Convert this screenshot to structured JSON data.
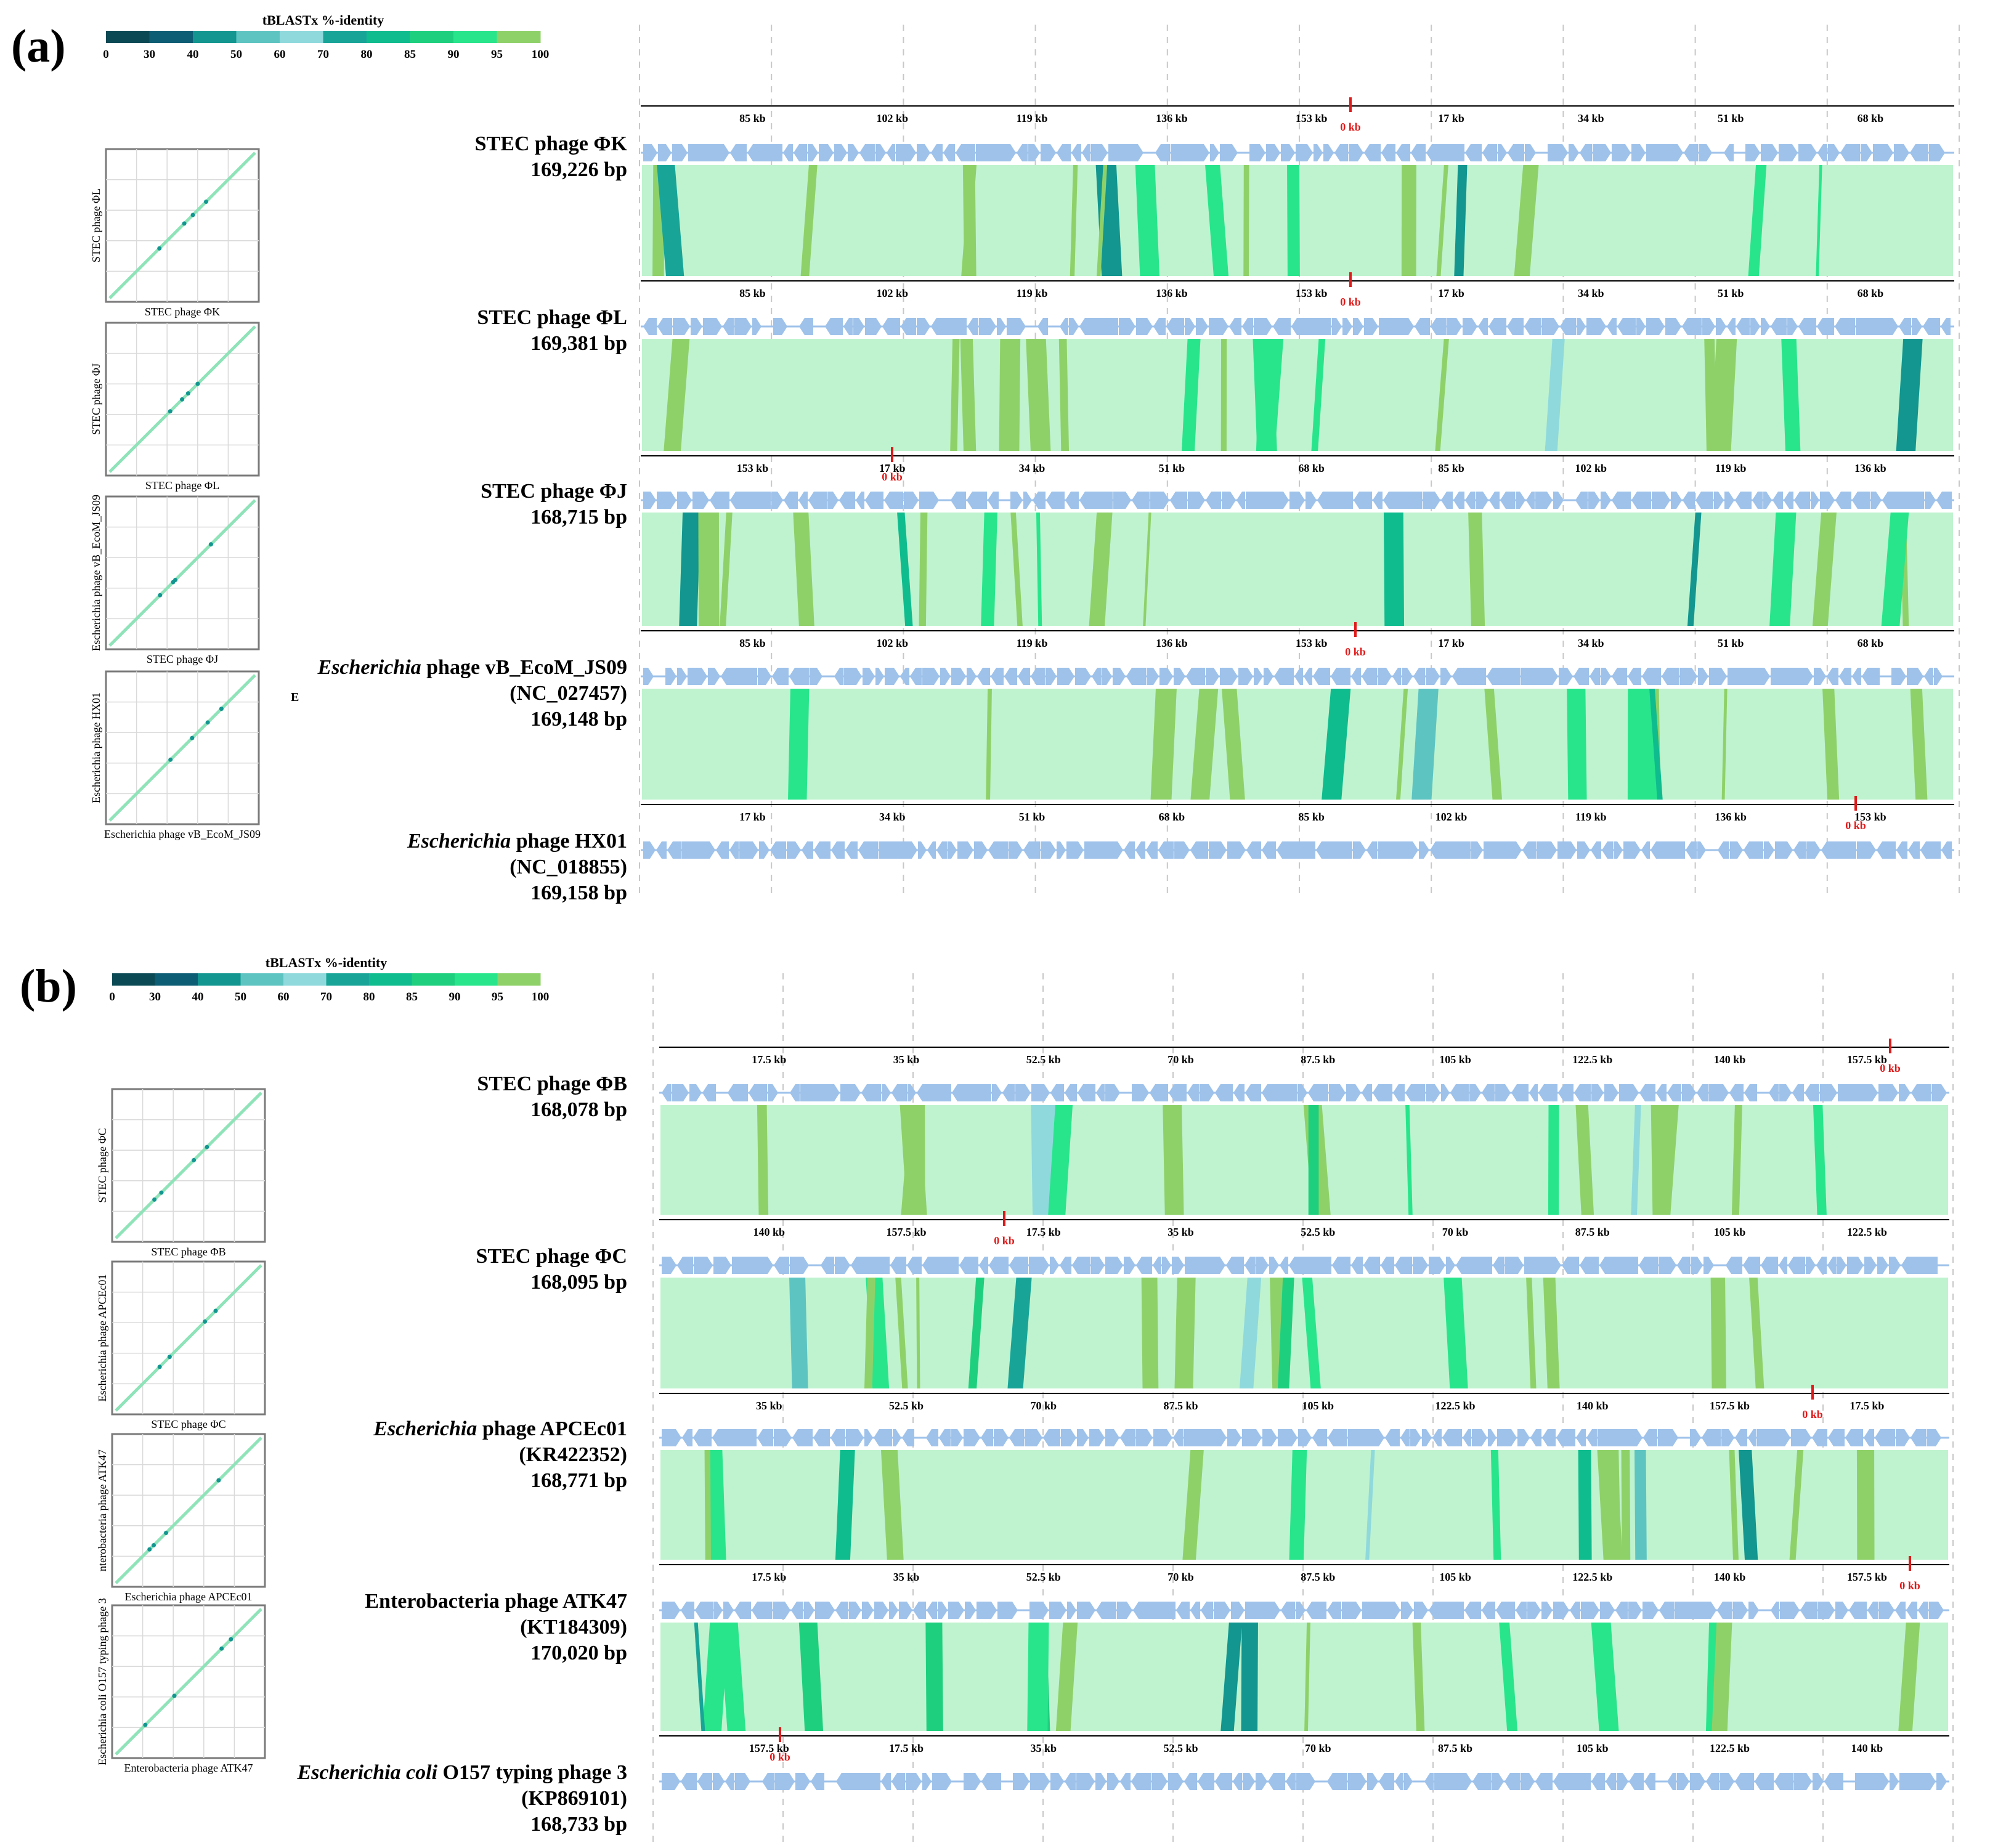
{
  "legend": {
    "title": "tBLASTx %-identity",
    "ticks": [
      "0",
      "30",
      "40",
      "50",
      "60",
      "70",
      "80",
      "85",
      "90",
      "95",
      "100"
    ],
    "colors": [
      "#0b4a55",
      "#0d5d74",
      "#12968f",
      "#5ec4c2",
      "#8fd9dc",
      "#18a598",
      "#0fbc8e",
      "#1ed07e",
      "#28e58c",
      "#8fd169",
      "#bff3cf"
    ]
  },
  "colors": {
    "identity": "#bff3cf",
    "gene": "#9ec2ea",
    "marker": "#e01919",
    "dash": "#c8c8c8"
  },
  "panels": [
    {
      "label": "(a)",
      "genomes": [
        {
          "name": "STEC phage ΦK",
          "lines": [
            {
              "parts": [
                {
                  "t": "STEC phage ΦK",
                  "i": false
                }
              ]
            },
            {
              "parts": [
                {
                  "t": "169,226 bp",
                  "i": false
                }
              ]
            }
          ],
          "ticks": [
            "85 kb",
            "102 kb",
            "119 kb",
            "136 kb",
            "153 kb",
            "17 kb",
            "34 kb",
            "51 kb",
            "68 kb"
          ],
          "zero": "0 kb"
        },
        {
          "name": "STEC phage ΦL",
          "lines": [
            {
              "parts": [
                {
                  "t": "STEC phage ΦL",
                  "i": false
                }
              ]
            },
            {
              "parts": [
                {
                  "t": "169,381 bp",
                  "i": false
                }
              ]
            }
          ],
          "ticks": [
            "85 kb",
            "102 kb",
            "119 kb",
            "136 kb",
            "153 kb",
            "17 kb",
            "34 kb",
            "51 kb",
            "68 kb"
          ],
          "zero": "0 kb"
        },
        {
          "name": "STEC phage ΦJ",
          "lines": [
            {
              "parts": [
                {
                  "t": "STEC phage ΦJ",
                  "i": false
                }
              ]
            },
            {
              "parts": [
                {
                  "t": "168,715 bp",
                  "i": false
                }
              ]
            }
          ],
          "ticks": [
            "153 kb",
            "17 kb",
            "34 kb",
            "51 kb",
            "68 kb",
            "85 kb",
            "102 kb",
            "119 kb",
            "136 kb"
          ],
          "zero": "0 kb"
        },
        {
          "name": "Escherichia phage vB_EcoM_JS09",
          "lines": [
            {
              "parts": [
                {
                  "t": "Escherichia",
                  "i": true
                },
                {
                  "t": " phage vB_EcoM_JS09",
                  "i": false
                }
              ]
            },
            {
              "parts": [
                {
                  "t": "(NC_027457)",
                  "i": false
                }
              ]
            },
            {
              "parts": [
                {
                  "t": "169,148 bp",
                  "i": false
                }
              ]
            }
          ],
          "ticks": [
            "85 kb",
            "102 kb",
            "119 kb",
            "136 kb",
            "153 kb",
            "17 kb",
            "34 kb",
            "51 kb",
            "68 kb"
          ],
          "zero": "0 kb"
        },
        {
          "name": "Escherichia phage HX01",
          "lines": [
            {
              "parts": [
                {
                  "t": "Escherichia",
                  "i": true
                },
                {
                  "t": " phage HX01",
                  "i": false
                }
              ]
            },
            {
              "parts": [
                {
                  "t": "(NC_018855)",
                  "i": false
                }
              ]
            },
            {
              "parts": [
                {
                  "t": "169,158 bp",
                  "i": false
                }
              ]
            }
          ],
          "ticks": [
            "17 kb",
            "34 kb",
            "51 kb",
            "68 kb",
            "85 kb",
            "102 kb",
            "119 kb",
            "136 kb",
            "153 kb"
          ],
          "zero": "0 kb"
        }
      ],
      "dotplots": [
        {
          "y": "STEC phage ΦL",
          "x": "STEC phage ΦK"
        },
        {
          "y": "STEC phage ΦJ",
          "x": "STEC phage ΦL"
        },
        {
          "y": "Escherichia phage vB_EcoM_JS09",
          "x": "STEC phage ΦJ"
        },
        {
          "y": "Escherichia phage HX01",
          "x": "Escherichia phage vB_EcoM_JS09"
        }
      ],
      "stray": "E"
    },
    {
      "label": "(b)",
      "genomes": [
        {
          "name": "STEC phage ΦB",
          "lines": [
            {
              "parts": [
                {
                  "t": "STEC phage ΦB",
                  "i": false
                }
              ]
            },
            {
              "parts": [
                {
                  "t": "168,078 bp",
                  "i": false
                }
              ]
            }
          ],
          "ticks": [
            "17.5 kb",
            "35 kb",
            "52.5 kb",
            "70 kb",
            "87.5 kb",
            "105 kb",
            "122.5 kb",
            "140 kb",
            "157.5 kb"
          ],
          "zero": "0 kb"
        },
        {
          "name": "STEC phage ΦC",
          "lines": [
            {
              "parts": [
                {
                  "t": "STEC phage ΦC",
                  "i": false
                }
              ]
            },
            {
              "parts": [
                {
                  "t": "168,095 bp",
                  "i": false
                }
              ]
            }
          ],
          "ticks": [
            "140 kb",
            "157.5 kb",
            "17.5 kb",
            "35 kb",
            "52.5 kb",
            "70 kb",
            "87.5 kb",
            "105 kb",
            "122.5 kb"
          ],
          "zero": "0 kb"
        },
        {
          "name": "Escherichia phage APCEc01",
          "lines": [
            {
              "parts": [
                {
                  "t": "Escherichia",
                  "i": true
                },
                {
                  "t": " phage APCEc01",
                  "i": false
                }
              ]
            },
            {
              "parts": [
                {
                  "t": "(KR422352)",
                  "i": false
                }
              ]
            },
            {
              "parts": [
                {
                  "t": "168,771 bp",
                  "i": false
                }
              ]
            }
          ],
          "ticks": [
            "35 kb",
            "52.5 kb",
            "70 kb",
            "87.5 kb",
            "105 kb",
            "122.5 kb",
            "140 kb",
            "157.5 kb",
            "17.5 kb"
          ],
          "zero": "0 kb"
        },
        {
          "name": "Enterobacteria phage ATK47",
          "lines": [
            {
              "parts": [
                {
                  "t": "Enterobacteria phage ATK47",
                  "i": false
                }
              ]
            },
            {
              "parts": [
                {
                  "t": "(KT184309)",
                  "i": false
                }
              ]
            },
            {
              "parts": [
                {
                  "t": "170,020 bp",
                  "i": false
                }
              ]
            }
          ],
          "ticks": [
            "17.5 kb",
            "35 kb",
            "52.5 kb",
            "70 kb",
            "87.5 kb",
            "105 kb",
            "122.5 kb",
            "140 kb",
            "157.5 kb"
          ],
          "zero": "0 kb"
        },
        {
          "name": "Escherichia coli O157 typing phage 3",
          "lines": [
            {
              "parts": [
                {
                  "t": "Escherichia coli",
                  "i": true
                },
                {
                  "t": " O157 typing phage 3",
                  "i": false
                }
              ]
            },
            {
              "parts": [
                {
                  "t": "(KP869101)",
                  "i": false
                }
              ]
            },
            {
              "parts": [
                {
                  "t": "168,733 bp",
                  "i": false
                }
              ]
            }
          ],
          "ticks": [
            "157.5 kb",
            "17.5 kb",
            "35 kb",
            "52.5 kb",
            "70 kb",
            "87.5 kb",
            "105 kb",
            "122.5 kb",
            "140 kb"
          ],
          "zero": "0 kb"
        }
      ],
      "dotplots": [
        {
          "y": "STEC phage ΦC",
          "x": "STEC phage ΦB"
        },
        {
          "y": "Escherichia phage APCEc01",
          "x": "STEC phage ΦC"
        },
        {
          "y": "nterobacteria phage ATK47",
          "x": "Escherichia phage APCEc01"
        },
        {
          "y": "Escherichia coli O157 typing phage 3",
          "x": "Enterobacteria phage ATK47"
        }
      ]
    }
  ]
}
